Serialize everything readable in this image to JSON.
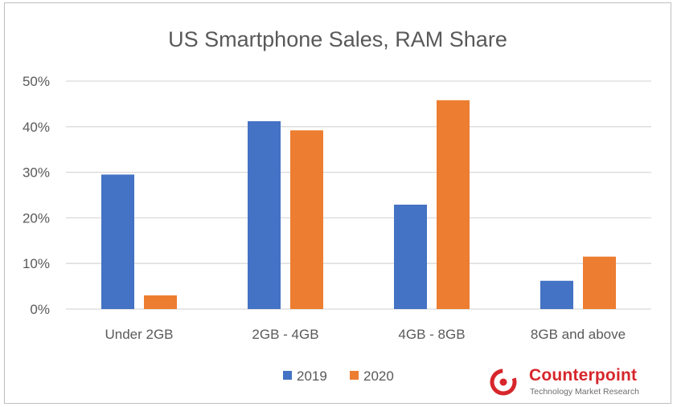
{
  "chart_data": {
    "type": "bar",
    "title": "US Smartphone Sales, RAM Share",
    "xlabel": "",
    "ylabel": "",
    "categories": [
      "Under 2GB",
      "2GB - 4GB",
      "4GB - 8GB",
      "8GB and above"
    ],
    "series": [
      {
        "name": "2019",
        "color": "#4472c4",
        "values": [
          29.5,
          41.2,
          22.9,
          6.2
        ]
      },
      {
        "name": "2020",
        "color": "#ed7d31",
        "values": [
          3.0,
          39.2,
          45.8,
          11.5
        ]
      }
    ],
    "ylim": [
      0,
      50
    ],
    "yticks": [
      0,
      10,
      20,
      30,
      40,
      50
    ],
    "ytick_labels": [
      "0%",
      "10%",
      "20%",
      "30%",
      "40%",
      "50%"
    ],
    "grid": true,
    "legend_position": "bottom"
  },
  "branding": {
    "name": "Counterpoint",
    "tagline": "Technology Market Research",
    "color": "#d7262b",
    "icon": "counterpoint-logo-icon"
  }
}
